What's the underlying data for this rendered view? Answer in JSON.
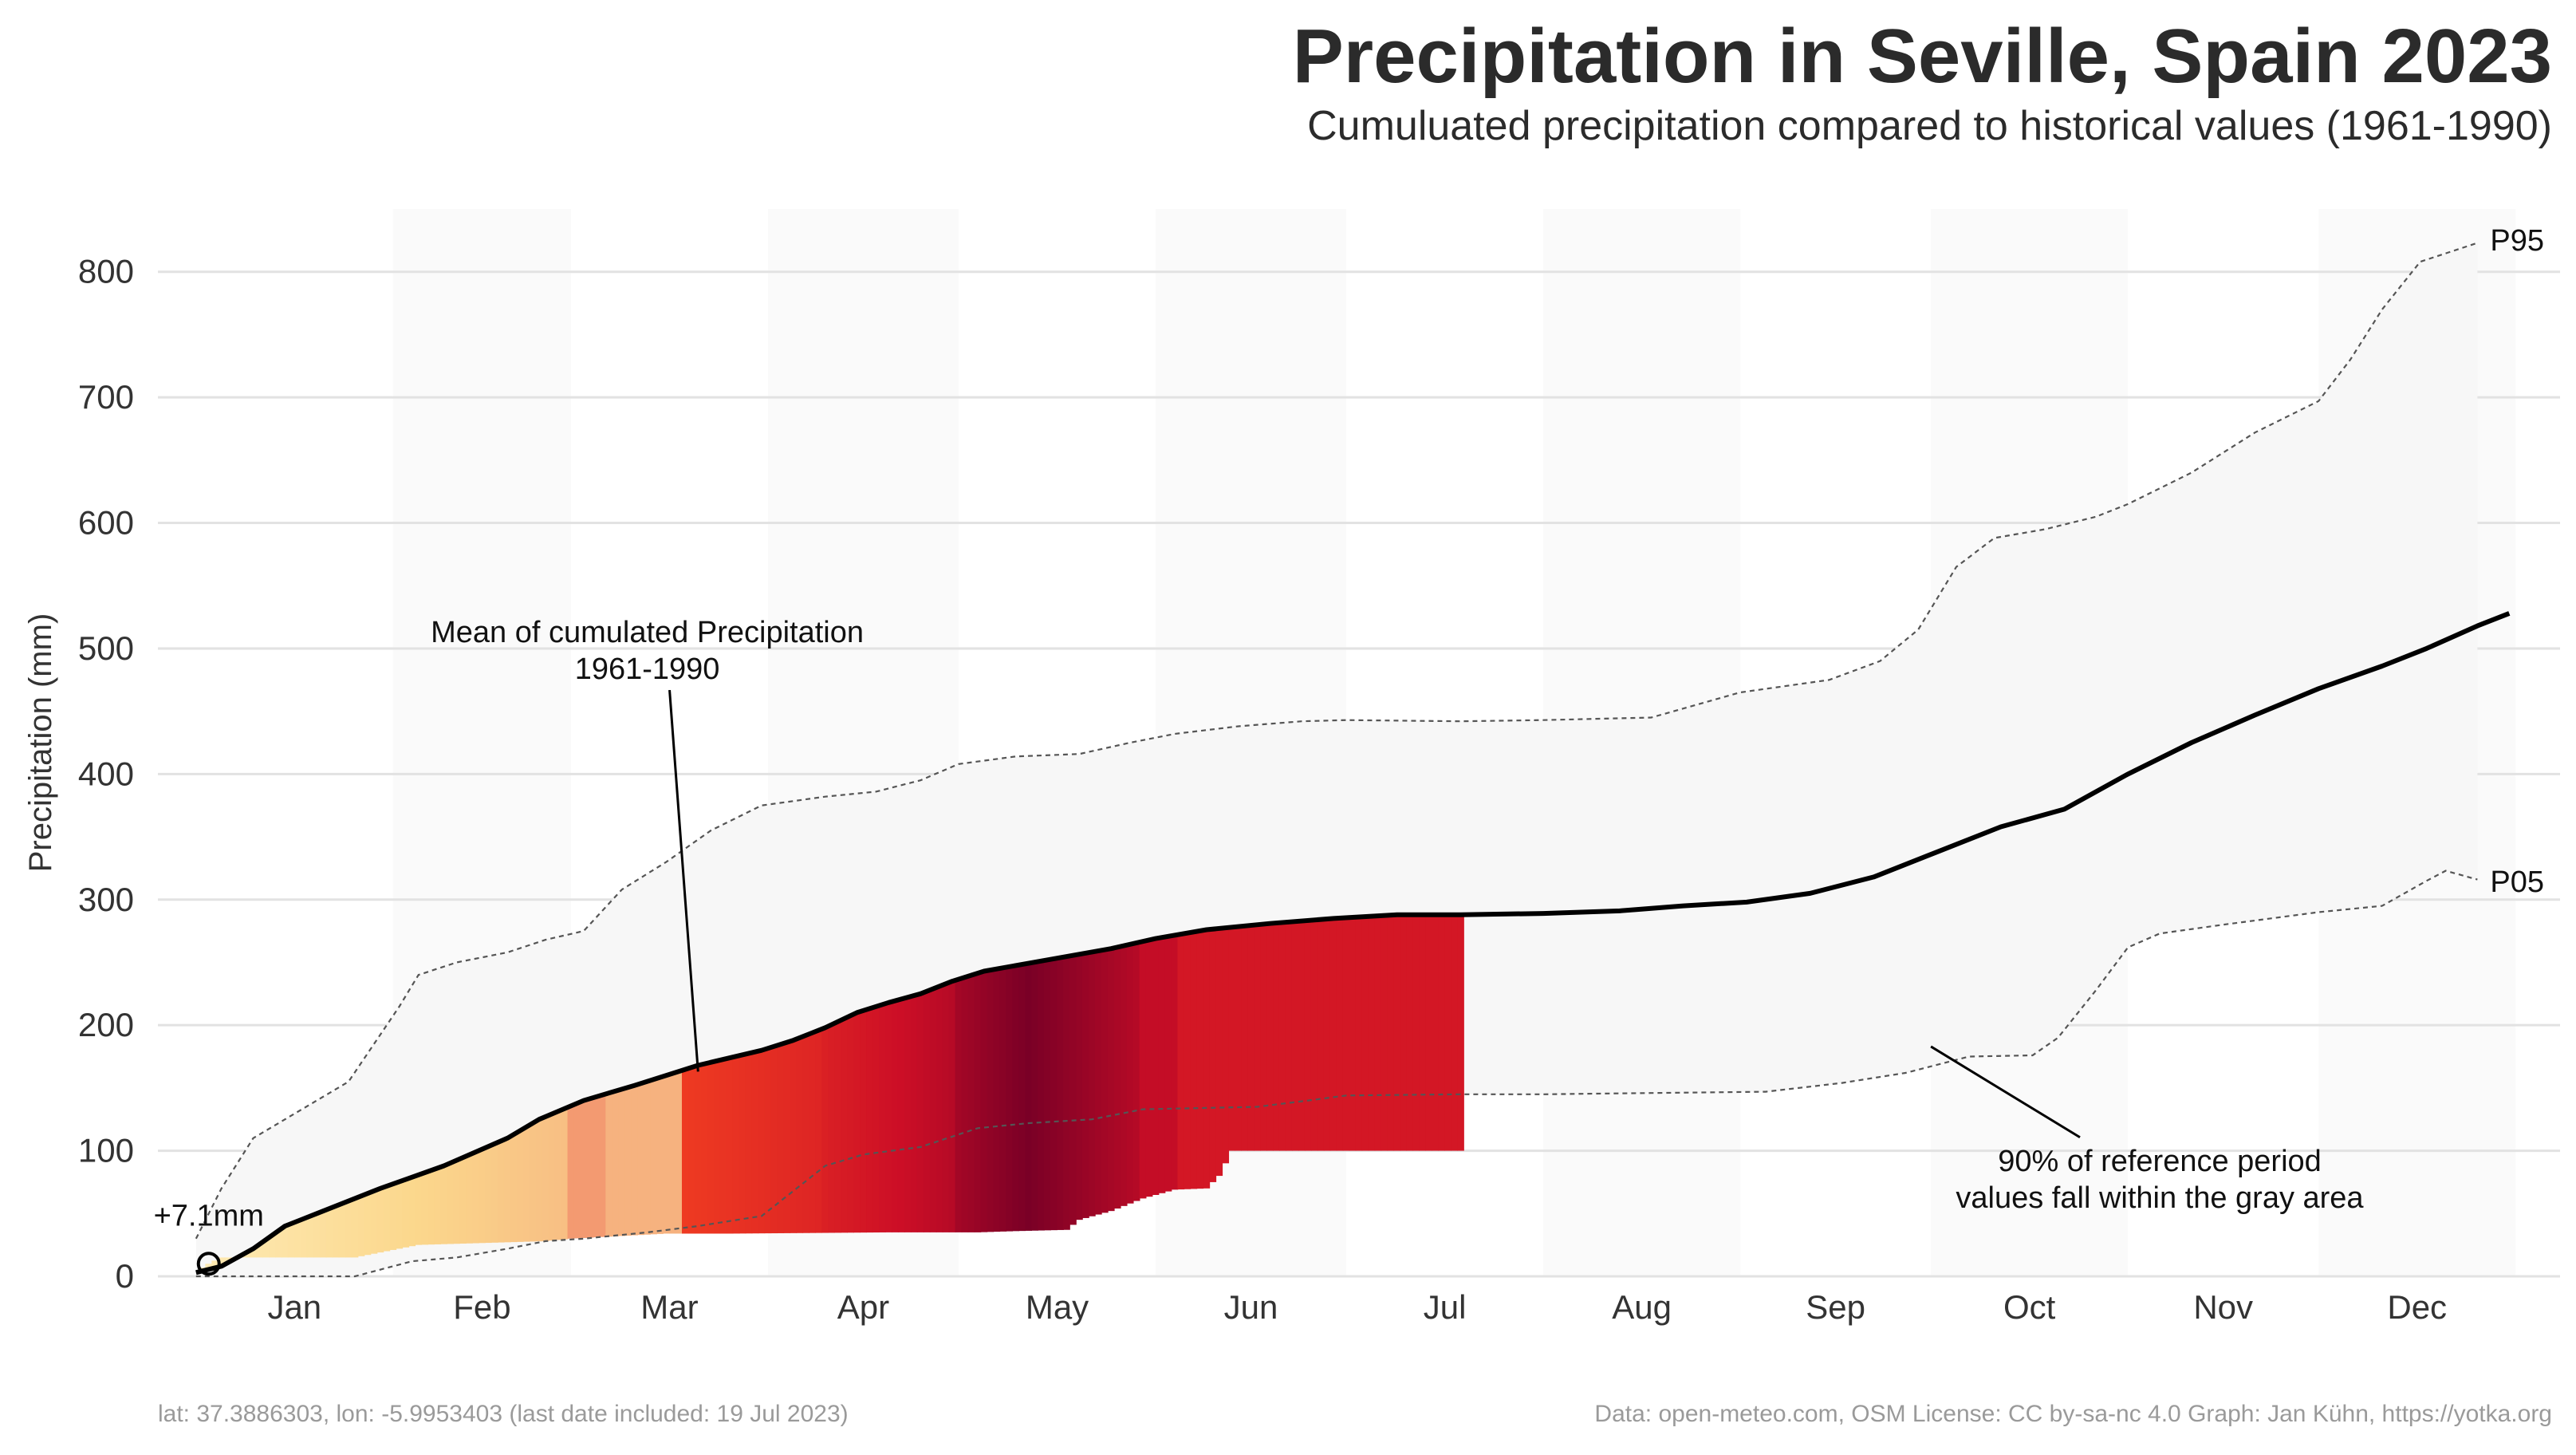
{
  "header": {
    "title": "Precipitation in Seville, Spain 2023",
    "subtitle": "Cumuluated precipitation compared to historical values (1961-1990)"
  },
  "footer": {
    "left": "lat: 37.3886303, lon: -5.9953403 (last date included: 19 Jul 2023)",
    "right": "Data: open-meteo.com, OSM  License: CC by-sa-nc 4.0  Graph: Jan Kühn, https://yotka.org"
  },
  "chart_data": {
    "type": "area",
    "ylabel": "Precipitation (mm)",
    "ylim": [
      0,
      850
    ],
    "yticks": [
      0,
      100,
      200,
      300,
      400,
      500,
      600,
      700,
      800
    ],
    "grid": true,
    "x_unit": "day of year",
    "xlim": [
      -5,
      373
    ],
    "months": [
      {
        "label": "Jan",
        "start": 1
      },
      {
        "label": "Feb",
        "start": 32
      },
      {
        "label": "Mar",
        "start": 60
      },
      {
        "label": "Apr",
        "start": 91
      },
      {
        "label": "May",
        "start": 121
      },
      {
        "label": "Jun",
        "start": 152
      },
      {
        "label": "Jul",
        "start": 182
      },
      {
        "label": "Aug",
        "start": 213
      },
      {
        "label": "Sep",
        "start": 244
      },
      {
        "label": "Oct",
        "start": 274
      },
      {
        "label": "Nov",
        "start": 305
      },
      {
        "label": "Dec",
        "start": 335
      }
    ],
    "series": [
      {
        "name": "P95",
        "line_style": "dashed",
        "points": [
          [
            1,
            30
          ],
          [
            5,
            70
          ],
          [
            10,
            110
          ],
          [
            20,
            140
          ],
          [
            25,
            155
          ],
          [
            33,
            215
          ],
          [
            36,
            240
          ],
          [
            42,
            250
          ],
          [
            50,
            258
          ],
          [
            56,
            268
          ],
          [
            62,
            275
          ],
          [
            68,
            308
          ],
          [
            75,
            330
          ],
          [
            82,
            355
          ],
          [
            90,
            375
          ],
          [
            100,
            382
          ],
          [
            108,
            386
          ],
          [
            115,
            395
          ],
          [
            121,
            408
          ],
          [
            130,
            414
          ],
          [
            140,
            416
          ],
          [
            148,
            425
          ],
          [
            155,
            432
          ],
          [
            165,
            438
          ],
          [
            175,
            442
          ],
          [
            182,
            443
          ],
          [
            200,
            442
          ],
          [
            213,
            443
          ],
          [
            230,
            445
          ],
          [
            244,
            465
          ],
          [
            258,
            475
          ],
          [
            266,
            490
          ],
          [
            272,
            515
          ],
          [
            278,
            565
          ],
          [
            284,
            588
          ],
          [
            292,
            595
          ],
          [
            300,
            605
          ],
          [
            305,
            615
          ],
          [
            315,
            640
          ],
          [
            325,
            672
          ],
          [
            335,
            697
          ],
          [
            340,
            730
          ],
          [
            345,
            770
          ],
          [
            351,
            808
          ],
          [
            360,
            823
          ]
        ]
      },
      {
        "name": "P05",
        "line_style": "dashed",
        "points": [
          [
            1,
            0
          ],
          [
            20,
            0
          ],
          [
            26,
            0
          ],
          [
            35,
            12
          ],
          [
            42,
            15
          ],
          [
            50,
            22
          ],
          [
            56,
            28
          ],
          [
            62,
            30
          ],
          [
            72,
            35
          ],
          [
            80,
            40
          ],
          [
            90,
            48
          ],
          [
            95,
            68
          ],
          [
            100,
            88
          ],
          [
            106,
            97
          ],
          [
            115,
            103
          ],
          [
            124,
            118
          ],
          [
            132,
            122
          ],
          [
            142,
            125
          ],
          [
            150,
            133
          ],
          [
            168,
            135
          ],
          [
            176,
            140
          ],
          [
            182,
            144
          ],
          [
            200,
            145
          ],
          [
            213,
            145
          ],
          [
            230,
            146
          ],
          [
            248,
            147
          ],
          [
            260,
            154
          ],
          [
            270,
            162
          ],
          [
            280,
            175
          ],
          [
            290,
            176
          ],
          [
            294,
            190
          ],
          [
            300,
            228
          ],
          [
            305,
            262
          ],
          [
            310,
            273
          ],
          [
            320,
            280
          ],
          [
            335,
            290
          ],
          [
            345,
            295
          ],
          [
            352,
            315
          ],
          [
            355,
            323
          ],
          [
            360,
            316
          ]
        ]
      },
      {
        "name": "Mean of cumulated Precipitation 1961-1990",
        "line_style": "solid",
        "points": [
          [
            1,
            3
          ],
          [
            5,
            8
          ],
          [
            10,
            22
          ],
          [
            15,
            40
          ],
          [
            20,
            50
          ],
          [
            30,
            70
          ],
          [
            40,
            88
          ],
          [
            50,
            110
          ],
          [
            55,
            125
          ],
          [
            62,
            140
          ],
          [
            70,
            152
          ],
          [
            75,
            160
          ],
          [
            80,
            168
          ],
          [
            90,
            180
          ],
          [
            95,
            188
          ],
          [
            100,
            198
          ],
          [
            105,
            210
          ],
          [
            110,
            218
          ],
          [
            115,
            225
          ],
          [
            120,
            235
          ],
          [
            125,
            243
          ],
          [
            135,
            252
          ],
          [
            145,
            261
          ],
          [
            152,
            269
          ],
          [
            160,
            276
          ],
          [
            170,
            281
          ],
          [
            180,
            285
          ],
          [
            190,
            288
          ],
          [
            200,
            288
          ],
          [
            213,
            289
          ],
          [
            225,
            291
          ],
          [
            235,
            295
          ],
          [
            245,
            298
          ],
          [
            255,
            305
          ],
          [
            265,
            318
          ],
          [
            275,
            338
          ],
          [
            285,
            358
          ],
          [
            295,
            372
          ],
          [
            305,
            400
          ],
          [
            315,
            425
          ],
          [
            325,
            447
          ],
          [
            335,
            468
          ],
          [
            345,
            486
          ],
          [
            352,
            500
          ],
          [
            360,
            518
          ],
          [
            365,
            528
          ]
        ]
      }
    ],
    "observed_2023": {
      "last_day": 200,
      "points": [
        [
          1,
          3
        ],
        [
          2,
          7
        ],
        [
          3,
          10
        ],
        [
          5,
          15
        ],
        [
          26,
          15
        ],
        [
          36,
          25
        ],
        [
          56,
          28
        ],
        [
          60,
          30
        ],
        [
          75,
          34
        ],
        [
          85,
          34
        ],
        [
          110,
          35
        ],
        [
          121,
          35
        ],
        [
          124,
          35
        ],
        [
          130,
          36
        ],
        [
          138,
          37
        ],
        [
          140,
          45
        ],
        [
          145,
          52
        ],
        [
          150,
          62
        ],
        [
          155,
          69
        ],
        [
          160,
          70
        ],
        [
          162,
          80
        ],
        [
          164,
          100
        ],
        [
          200,
          100
        ]
      ]
    },
    "annotations": [
      {
        "text": "+7.1mm",
        "x": 3,
        "y": 10,
        "marker": "circle"
      },
      {
        "text": "P95",
        "x": 362,
        "y": 826
      },
      {
        "text": "P05",
        "x": 362,
        "y": 315
      },
      {
        "text_lines": [
          "Mean of cumulated Precipitation",
          "1961-1990"
        ],
        "x": 72,
        "y": 505,
        "pointer_to": [
          80,
          163
        ]
      },
      {
        "text_lines": [
          "90% of reference period",
          "values fall within the gray area"
        ],
        "x": 310,
        "y": 84,
        "pointer_to": [
          274,
          183
        ]
      }
    ],
    "colors": {
      "band": "#f7f7f7",
      "month_shade": "#fafafa",
      "grid": "#e2e2e2",
      "mean_line": "#000000",
      "dashed_line": "#555555",
      "colormap": [
        "#fff2c4",
        "#fbd78c",
        "#f4a57a",
        "#ee3a22",
        "#cc0e26",
        "#7a0026"
      ]
    }
  }
}
